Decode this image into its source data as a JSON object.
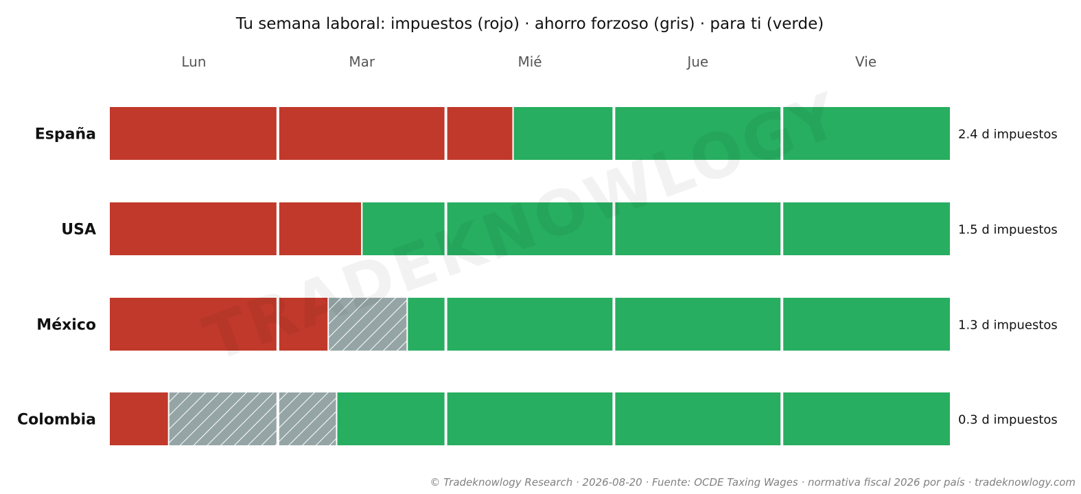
{
  "chart_data": {
    "type": "bar",
    "title": "Tu semana laboral: impuestos (rojo) · ahorro forzoso (gris) · para ti (verde)",
    "days": [
      "Lun",
      "Mar",
      "Mié",
      "Jue",
      "Vie"
    ],
    "xlim": [
      0,
      5
    ],
    "grid": false,
    "legend": "none",
    "colors": {
      "impuestos": "#c0392b",
      "ahorro_forzoso": "#95a5a6",
      "para_ti": "#27ae60"
    },
    "countries": [
      {
        "name": "España",
        "impuestos": 2.4,
        "ahorro_forzoso": 0.0,
        "para_ti": 2.6,
        "label": "2.4 d impuestos"
      },
      {
        "name": "USA",
        "impuestos": 1.5,
        "ahorro_forzoso": 0.0,
        "para_ti": 3.5,
        "label": "1.5 d impuestos"
      },
      {
        "name": "México",
        "impuestos": 1.3,
        "ahorro_forzoso": 0.47,
        "para_ti": 3.23,
        "label": "1.3 d impuestos"
      },
      {
        "name": "Colombia",
        "impuestos": 0.35,
        "ahorro_forzoso": 1.0,
        "para_ti": 3.65,
        "label": "0.3 d impuestos"
      }
    ],
    "watermark": "TRADEKNOWLOGY"
  },
  "footer": "© Tradeknowlogy Research   ·   2026-08-20   ·   Fuente: OCDE Taxing Wages · normativa fiscal 2026 por país   ·   tradeknowlogy.com"
}
